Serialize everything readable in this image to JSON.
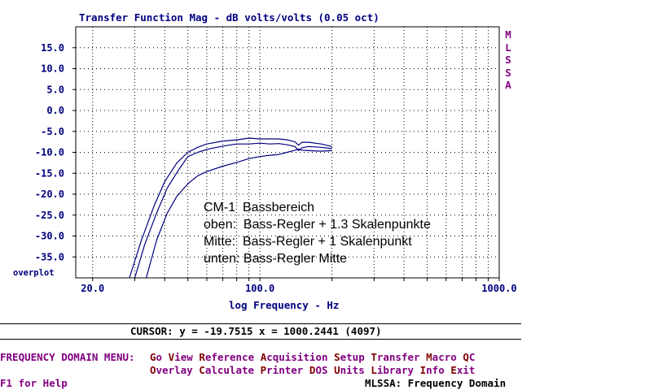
{
  "window": {
    "title": "Transfer Function Mag - dB volts/volts (0.05 oct)",
    "side_logo": [
      "M",
      "L",
      "S",
      "S",
      "A"
    ],
    "overplot_label": "overplot"
  },
  "chart_data": {
    "type": "line",
    "title": "Transfer Function Mag - dB volts/volts (0.05 oct)",
    "xlabel": "log Frequency - Hz",
    "ylabel": "",
    "xscale": "log",
    "xlim": [
      17,
      1000
    ],
    "ylim": [
      -40,
      20
    ],
    "y_ticks": [
      15,
      10,
      5,
      0,
      -5,
      -10,
      -15,
      -20,
      -25,
      -30,
      -35
    ],
    "y_tick_labels": [
      "15.0",
      "10.0",
      "5.0",
      "0.0",
      "-5.0",
      "-10.0",
      "-15.0",
      "-20.0",
      "-25.0",
      "-30.0",
      "-35.0"
    ],
    "x_ticks": [
      20,
      100,
      1000
    ],
    "x_tick_labels": [
      "20.0",
      "100.0",
      "1000.0"
    ],
    "x_minor_ticks": [
      30,
      40,
      50,
      60,
      70,
      80,
      90,
      200,
      300,
      400,
      500,
      600,
      700,
      800,
      900
    ],
    "grid": true,
    "line_color": "#000080",
    "series": [
      {
        "x": [
          28.5,
          32,
          36,
          40,
          45,
          50,
          55,
          60,
          70,
          80,
          90,
          100,
          110,
          120,
          130,
          140,
          145,
          150,
          160,
          180,
          200
        ],
        "y": [
          -40,
          -31,
          -23,
          -17,
          -12.5,
          -10,
          -8.8,
          -8,
          -7.3,
          -7,
          -6.6,
          -6.8,
          -6.8,
          -6.8,
          -7,
          -7.5,
          -8.3,
          -7.6,
          -7.6,
          -8,
          -8.6
        ]
      },
      {
        "x": [
          30,
          33,
          37,
          41,
          46,
          50,
          55,
          60,
          70,
          80,
          90,
          100,
          110,
          120,
          130,
          140,
          145,
          150,
          160,
          180,
          200
        ],
        "y": [
          -40,
          -32,
          -24.5,
          -18.5,
          -14,
          -11,
          -10,
          -9.3,
          -8.5,
          -8,
          -8,
          -7.8,
          -8,
          -7.9,
          -8.2,
          -8.6,
          -9.6,
          -8.9,
          -8.6,
          -8.8,
          -9.1
        ]
      },
      {
        "x": [
          33.5,
          37,
          41,
          45,
          50,
          55,
          60,
          70,
          80,
          90,
          100,
          110,
          120,
          130,
          140,
          145,
          150,
          160,
          180,
          200
        ],
        "y": [
          -40,
          -31,
          -24.5,
          -20.5,
          -17.5,
          -15.6,
          -14.6,
          -13.3,
          -12.4,
          -11.5,
          -11,
          -10.7,
          -10.5,
          -10,
          -9.5,
          -9.2,
          -9.5,
          -9.6,
          -9.7,
          -9.6
        ]
      }
    ]
  },
  "annotation": {
    "lines": [
      "CM-1  Bassbereich",
      "oben:  Bass-Regler + 1.3 Skalenpunkte",
      "Mitte:  Bass-Regler + 1 Skalenpunkt",
      "unten: Bass-Regler Mitte"
    ]
  },
  "cursor": {
    "text": "CURSOR: y = -19.7515 x = 1000.2441 (4097)"
  },
  "menu": {
    "title": "FREQUENCY DOMAIN MENU:",
    "row1": [
      {
        "hot": "G",
        "rest": "o"
      },
      {
        "hot": "V",
        "rest": "iew"
      },
      {
        "hot": "R",
        "rest": "eference"
      },
      {
        "hot": "A",
        "rest": "cquisition"
      },
      {
        "hot": "S",
        "rest": "etup"
      },
      {
        "hot": "T",
        "rest": "ransfer"
      },
      {
        "hot": "M",
        "rest": "acro"
      },
      {
        "hot": "Q",
        "rest": "C"
      }
    ],
    "row2": [
      {
        "hot": "O",
        "rest": "verlay"
      },
      {
        "hot": "C",
        "rest": "alculate"
      },
      {
        "hot": "P",
        "rest": "rinter"
      },
      {
        "hot": "D",
        "rest": "OS"
      },
      {
        "hot": "U",
        "rest": "nits"
      },
      {
        "hot": "L",
        "rest": "ibrary"
      },
      {
        "hot": "I",
        "rest": "nfo"
      },
      {
        "hot": "E",
        "rest": "xit"
      }
    ]
  },
  "status": {
    "help": "F1 for Help",
    "mode": "MLSSA: Frequency Domain"
  }
}
